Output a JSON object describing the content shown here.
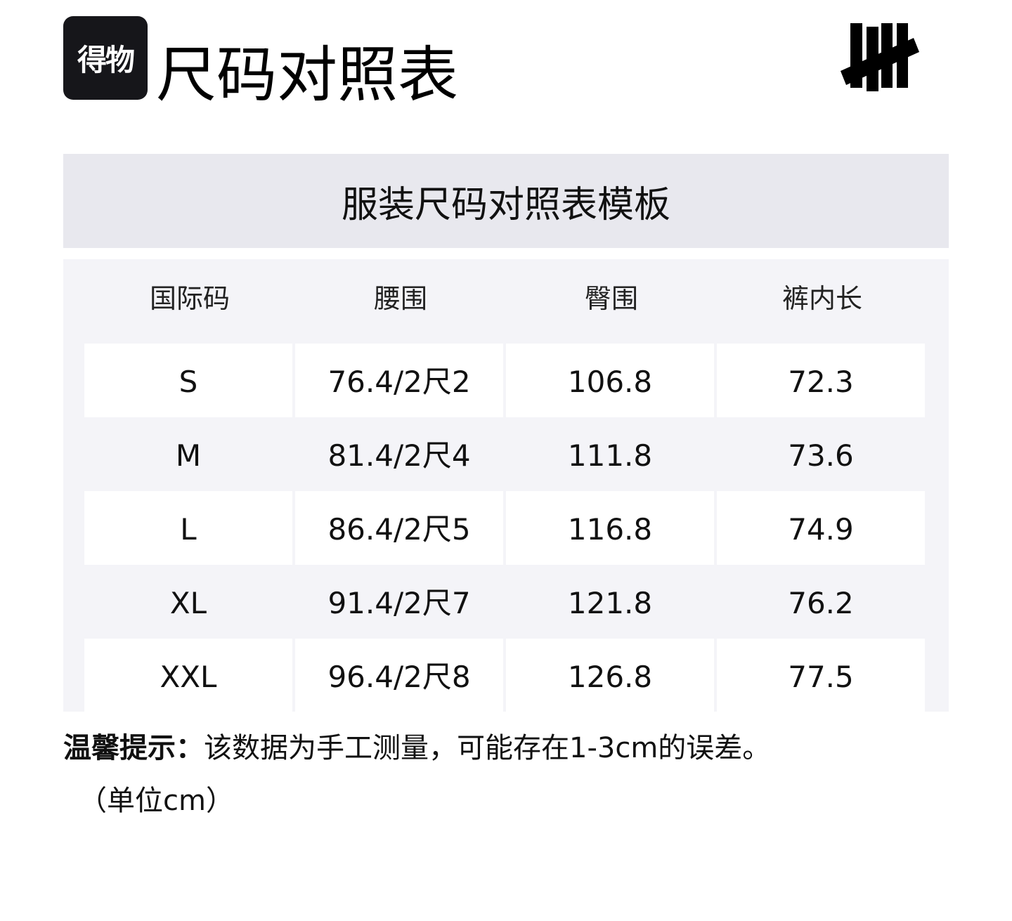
{
  "header": {
    "app_logo_text": "得物",
    "title": "尺码对照表",
    "brand_logo": "undefeated-five-strike-logo"
  },
  "table": {
    "caption": "服装尺码对照表模板",
    "columns": [
      "国际码",
      "腰围",
      "臀围",
      "裤内长"
    ],
    "rows": [
      [
        "S",
        "76.4/2尺2",
        "106.8",
        "72.3"
      ],
      [
        "M",
        "81.4/2尺4",
        "111.8",
        "73.6"
      ],
      [
        "L",
        "86.4/2尺5",
        "116.8",
        "74.9"
      ],
      [
        "XL",
        "91.4/2尺7",
        "121.8",
        "76.2"
      ],
      [
        "XXL",
        "96.4/2尺8",
        "126.8",
        "77.5"
      ]
    ]
  },
  "note": {
    "label": "温馨提示：",
    "text": "该数据为手工测量，可能存在1-3cm的误差。",
    "unit": "（单位cm）"
  },
  "colors": {
    "caption_bg": "#e8e8ee",
    "table_bg": "#f4f4f8",
    "logo_bg": "#16161a"
  }
}
